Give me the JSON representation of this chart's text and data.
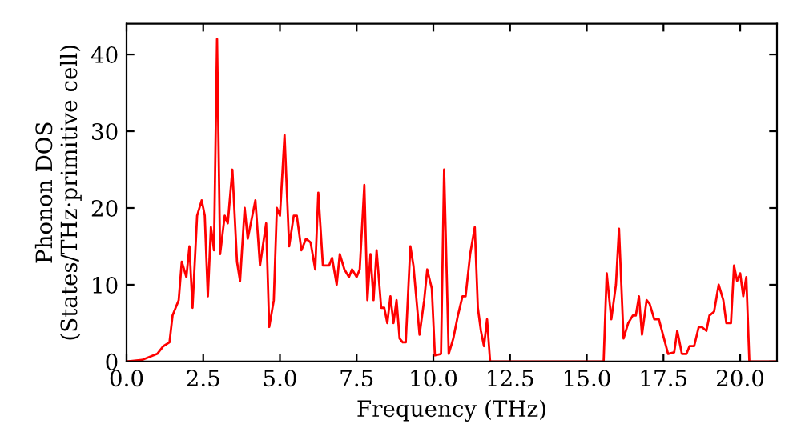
{
  "chart_data": {
    "type": "line",
    "xlabel": "Frequency (THz)",
    "ylabel": "Phonon DOS\n(States/THz·primitive cell)",
    "xlim": [
      0,
      21.2
    ],
    "ylim": [
      0,
      44
    ],
    "xticks": [
      {
        "value": 0,
        "label": "0.0"
      },
      {
        "value": 2.5,
        "label": "2.5"
      },
      {
        "value": 5,
        "label": "5.0"
      },
      {
        "value": 7.5,
        "label": "7.5"
      },
      {
        "value": 10,
        "label": "10.0"
      },
      {
        "value": 12.5,
        "label": "12.5"
      },
      {
        "value": 15,
        "label": "15.0"
      },
      {
        "value": 17.5,
        "label": "17.5"
      },
      {
        "value": 20,
        "label": "20.0"
      }
    ],
    "yticks": [
      0,
      10,
      20,
      30,
      40
    ],
    "grid": false,
    "marker": "none",
    "line_style": "solid",
    "series": [
      {
        "color": "#ff0000",
        "x": [
          0,
          0.5,
          1.0,
          1.2,
          1.4,
          1.5,
          1.7,
          1.8,
          1.95,
          2.05,
          2.15,
          2.3,
          2.45,
          2.55,
          2.65,
          2.75,
          2.85,
          2.95,
          3.05,
          3.2,
          3.3,
          3.45,
          3.6,
          3.7,
          3.85,
          3.95,
          4.05,
          4.2,
          4.35,
          4.55,
          4.65,
          4.8,
          4.9,
          5.0,
          5.15,
          5.3,
          5.45,
          5.55,
          5.7,
          5.85,
          6.0,
          6.15,
          6.25,
          6.4,
          6.6,
          6.7,
          6.85,
          6.95,
          7.1,
          7.25,
          7.35,
          7.5,
          7.6,
          7.75,
          7.85,
          7.95,
          8.05,
          8.15,
          8.3,
          8.4,
          8.5,
          8.6,
          8.7,
          8.8,
          8.9,
          9.0,
          9.1,
          9.25,
          9.35,
          9.55,
          9.7,
          9.8,
          9.95,
          10.05,
          10.25,
          10.35,
          10.5,
          10.65,
          10.8,
          10.95,
          11.05,
          11.2,
          11.35,
          11.45,
          11.55,
          11.65,
          11.75,
          11.85,
          15.55,
          15.65,
          15.8,
          15.95,
          16.05,
          16.2,
          16.35,
          16.5,
          16.6,
          16.7,
          16.8,
          16.95,
          17.05,
          17.2,
          17.35,
          17.55,
          17.65,
          17.85,
          17.95,
          18.1,
          18.25,
          18.35,
          18.5,
          18.65,
          18.75,
          18.9,
          19.0,
          19.15,
          19.3,
          19.45,
          19.55,
          19.7,
          19.8,
          19.9,
          20.0,
          20.1,
          20.2,
          20.3,
          21.2
        ],
        "values": [
          0,
          0.2,
          1,
          2,
          2.5,
          6,
          8,
          13,
          11,
          15,
          7,
          19,
          21,
          19,
          8.5,
          17.5,
          14.5,
          42,
          14,
          19,
          18,
          25,
          13,
          10.5,
          20,
          16,
          18,
          21,
          12.5,
          18,
          4.5,
          8,
          20,
          19,
          29.5,
          15,
          19,
          19,
          14.5,
          16,
          15.5,
          12,
          22,
          12.5,
          12.5,
          13.5,
          10,
          14,
          12,
          11,
          12,
          11,
          12,
          23,
          8,
          14,
          8,
          14.5,
          7,
          7,
          5,
          8.5,
          5,
          8,
          3,
          2.5,
          2.5,
          15,
          12.5,
          3.5,
          8,
          12,
          9.5,
          0.8,
          1,
          25,
          1,
          3,
          6,
          8.5,
          8.5,
          14,
          17.5,
          7,
          4,
          2,
          5.5,
          0,
          0,
          11.5,
          5.5,
          10,
          17.3,
          3,
          5,
          6,
          6,
          8.5,
          3.5,
          8,
          7.5,
          5.5,
          5.5,
          2.5,
          1,
          1.2,
          4,
          1,
          1,
          2,
          2,
          4.5,
          4.5,
          4,
          6,
          6.5,
          10,
          8,
          5,
          5,
          12.5,
          10.5,
          11.5,
          8.5,
          11,
          0,
          0
        ]
      }
    ]
  }
}
